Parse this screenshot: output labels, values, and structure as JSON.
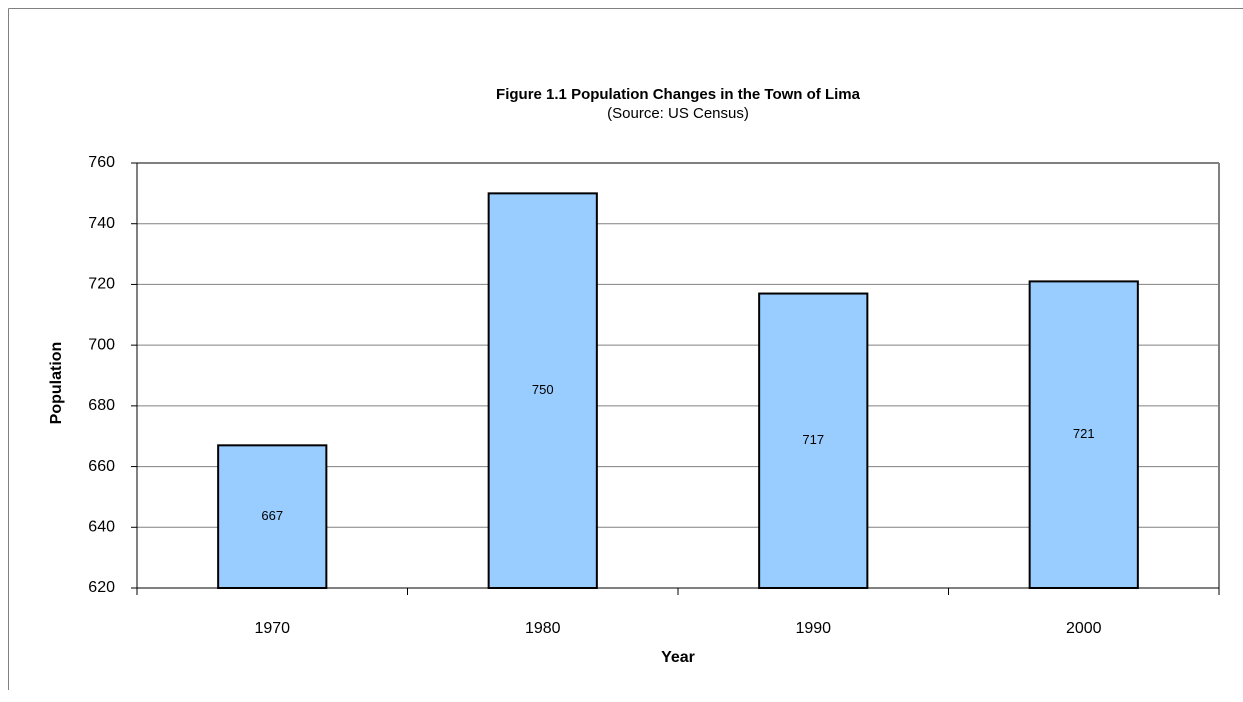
{
  "chart_data": {
    "type": "bar",
    "title": "Figure 1.1 Population Changes in the Town of Lima",
    "subtitle": "(Source: US Census)",
    "x_label": "Year",
    "y_label": "Population",
    "categories": [
      "1970",
      "1980",
      "1990",
      "2000"
    ],
    "values": [
      667,
      750,
      717,
      721
    ],
    "color": "#99ccff",
    "ylim": [
      620,
      760
    ],
    "yticks": [
      620,
      640,
      660,
      680,
      700,
      720,
      740,
      760
    ],
    "grid": true
  }
}
